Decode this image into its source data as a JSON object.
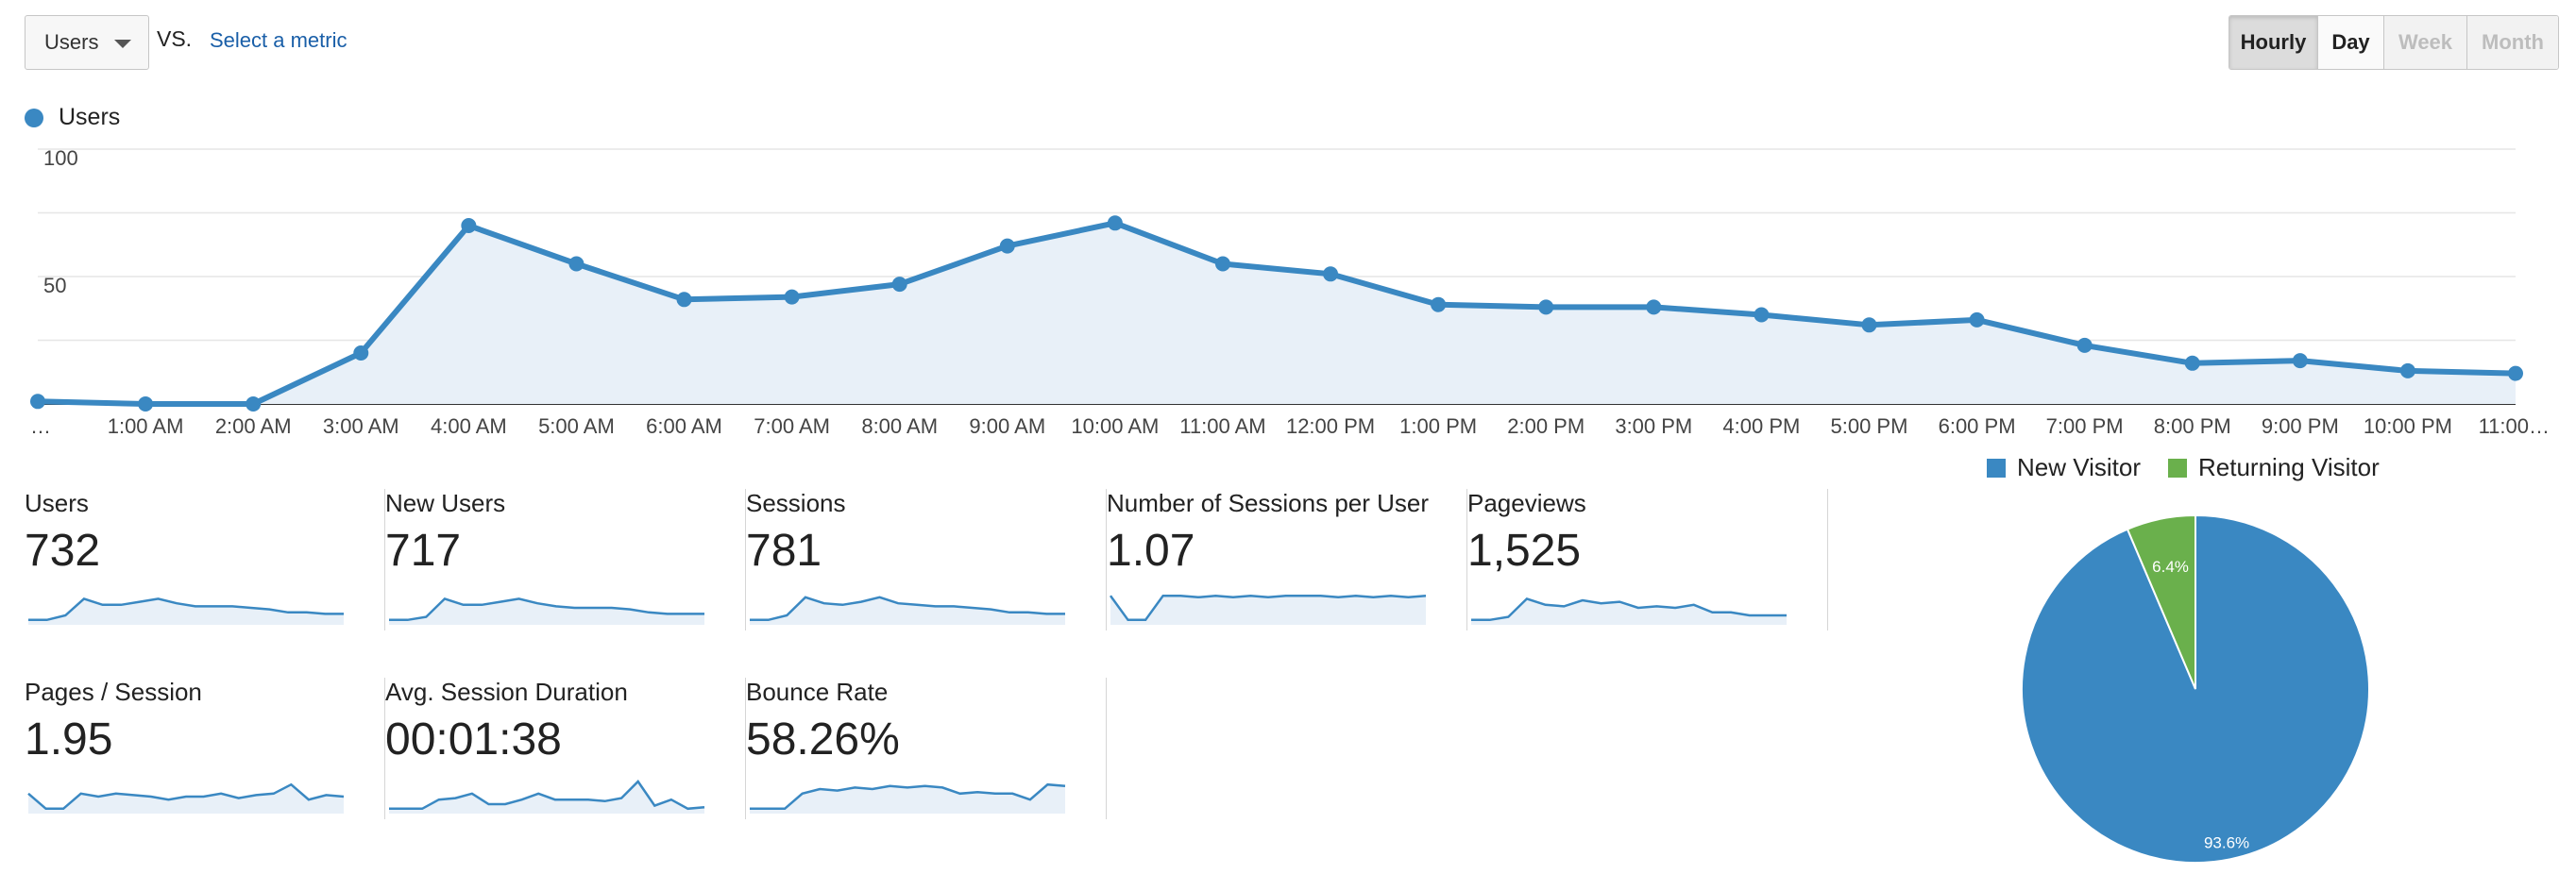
{
  "controls": {
    "metric_select": "Users",
    "vs_label": "VS.",
    "select_metric_link": "Select a metric",
    "periods": [
      {
        "label": "Hourly",
        "state": "active"
      },
      {
        "label": "Day",
        "state": "normal"
      },
      {
        "label": "Week",
        "state": "disabled"
      },
      {
        "label": "Month",
        "state": "disabled"
      }
    ]
  },
  "colors": {
    "series": "#3a88c2",
    "area": "#e8f0f8",
    "new_visitor": "#3a88c2",
    "returning_visitor": "#6ab04c",
    "grid": "#e6e6e6"
  },
  "chart_data": [
    {
      "type": "line",
      "title": "",
      "series": [
        {
          "name": "Users",
          "values": [
            1,
            0,
            0,
            20,
            70,
            55,
            41,
            42,
            47,
            62,
            71,
            55,
            51,
            39,
            38,
            38,
            35,
            31,
            33,
            23,
            16,
            17,
            13,
            12
          ]
        }
      ],
      "x": [
        "…",
        "1:00 AM",
        "2:00 AM",
        "3:00 AM",
        "4:00 AM",
        "5:00 AM",
        "6:00 AM",
        "7:00 AM",
        "8:00 AM",
        "9:00 AM",
        "10:00 AM",
        "11:00 AM",
        "12:00 PM",
        "1:00 PM",
        "2:00 PM",
        "3:00 PM",
        "4:00 PM",
        "5:00 PM",
        "6:00 PM",
        "7:00 PM",
        "8:00 PM",
        "9:00 PM",
        "10:00 PM",
        "11:00…"
      ],
      "y_ticks": [
        "100",
        "50"
      ],
      "ylim": [
        0,
        100
      ],
      "grid": true,
      "legend": "top-left"
    },
    {
      "type": "pie",
      "categories": [
        "New Visitor",
        "Returning Visitor"
      ],
      "values": [
        93.6,
        6.4
      ],
      "labels": [
        "93.6%",
        "6.4%"
      ],
      "legend": "top"
    }
  ],
  "metrics": [
    {
      "label": "Users",
      "value": "732",
      "spark": [
        2,
        2,
        5,
        16,
        12,
        12,
        14,
        16,
        13,
        11,
        11,
        11,
        10,
        9,
        7,
        7,
        6,
        6
      ]
    },
    {
      "label": "New Users",
      "value": "717",
      "spark": [
        2,
        2,
        4,
        16,
        12,
        12,
        14,
        16,
        13,
        11,
        10,
        10,
        10,
        9,
        7,
        6,
        6,
        6
      ]
    },
    {
      "label": "Sessions",
      "value": "781",
      "spark": [
        2,
        2,
        5,
        17,
        13,
        12,
        14,
        17,
        13,
        12,
        11,
        11,
        10,
        9,
        7,
        7,
        6,
        6
      ]
    },
    {
      "label": "Number of Sessions per User",
      "value": "1.07",
      "spark": [
        18,
        2,
        2,
        18,
        18,
        17,
        18,
        17,
        18,
        17,
        18,
        18,
        18,
        17,
        18,
        17,
        18,
        17,
        18
      ]
    },
    {
      "label": "Pageviews",
      "value": "1,525",
      "spark": [
        2,
        2,
        4,
        16,
        12,
        11,
        15,
        13,
        14,
        10,
        11,
        10,
        12,
        7,
        7,
        5,
        5,
        5
      ]
    },
    {
      "label": "Pages / Session",
      "value": "1.95",
      "spark": [
        12,
        2,
        2,
        12,
        10,
        12,
        11,
        10,
        8,
        10,
        10,
        12,
        9,
        11,
        12,
        18,
        8,
        11,
        10
      ]
    },
    {
      "label": "Avg. Session Duration",
      "value": "00:01:38",
      "spark": [
        2,
        2,
        2,
        8,
        9,
        12,
        5,
        5,
        8,
        12,
        8,
        8,
        8,
        7,
        9,
        20,
        4,
        8,
        2,
        3
      ]
    },
    {
      "label": "Bounce Rate",
      "value": "58.26%",
      "spark": [
        2,
        2,
        2,
        12,
        15,
        14,
        16,
        15,
        17,
        16,
        17,
        16,
        12,
        13,
        12,
        12,
        8,
        18,
        17
      ]
    }
  ]
}
